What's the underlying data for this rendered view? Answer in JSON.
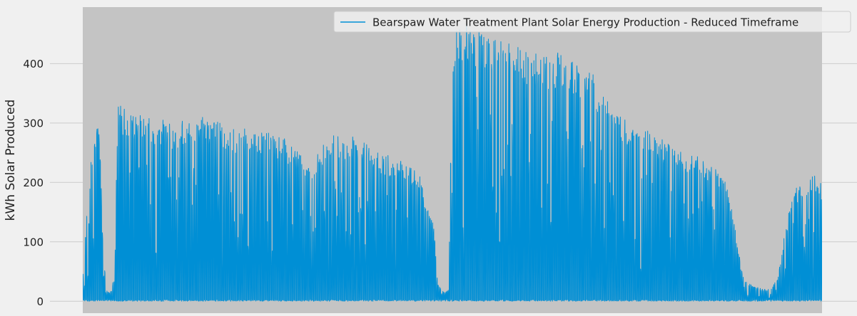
{
  "chart_data": {
    "type": "line",
    "title": "",
    "xlabel": "",
    "ylabel": "kWh Solar Produced",
    "ylim": [
      -20,
      495
    ],
    "xlim": [
      0,
      1
    ],
    "y_ticks": [
      0,
      100,
      200,
      300,
      400
    ],
    "x_ticks": [],
    "grid": "horizontal",
    "legend_placement": "top-right",
    "series": [
      {
        "name": "Bearspaw Water Treatment Plant Solar Energy Production - Reduced Timeframe",
        "color": "#008fd5",
        "envelope": {
          "note_x_is_relative_position": true,
          "x": [
            0.0,
            0.003,
            0.007,
            0.012,
            0.018,
            0.022,
            0.028,
            0.032,
            0.036,
            0.04,
            0.044,
            0.047,
            0.05,
            0.055,
            0.065,
            0.075,
            0.085,
            0.095,
            0.11,
            0.125,
            0.14,
            0.16,
            0.18,
            0.2,
            0.22,
            0.24,
            0.26,
            0.28,
            0.3,
            0.31,
            0.32,
            0.34,
            0.36,
            0.38,
            0.4,
            0.42,
            0.44,
            0.455,
            0.465,
            0.475,
            0.48,
            0.485,
            0.49,
            0.495,
            0.5,
            0.505,
            0.515,
            0.525,
            0.535,
            0.55,
            0.57,
            0.59,
            0.61,
            0.63,
            0.65,
            0.67,
            0.69,
            0.71,
            0.725,
            0.74,
            0.76,
            0.78,
            0.8,
            0.82,
            0.84,
            0.86,
            0.87,
            0.88,
            0.89,
            0.895,
            0.9,
            0.91,
            0.92,
            0.93,
            0.94,
            0.945,
            0.95,
            0.955,
            0.96,
            0.965,
            0.97,
            0.975,
            0.98,
            0.985,
            0.99,
            0.995,
            1.0
          ],
          "y": [
            40,
            110,
            180,
            250,
            305,
            310,
            80,
            20,
            15,
            20,
            90,
            340,
            330,
            325,
            318,
            318,
            310,
            305,
            305,
            300,
            310,
            318,
            305,
            295,
            290,
            290,
            280,
            270,
            250,
            215,
            260,
            280,
            280,
            270,
            255,
            240,
            232,
            220,
            160,
            130,
            30,
            20,
            15,
            20,
            450,
            465,
            470,
            465,
            460,
            450,
            440,
            430,
            420,
            415,
            420,
            405,
            385,
            345,
            315,
            300,
            290,
            275,
            260,
            250,
            240,
            220,
            200,
            150,
            60,
            35,
            30,
            25,
            20,
            20,
            40,
            80,
            120,
            150,
            180,
            190,
            200,
            205,
            210,
            210,
            215,
            205,
            200
          ]
        }
      }
    ]
  },
  "style": {
    "figure_bg": "#f0f0f0",
    "axes_bg": "#c4c4c4",
    "grid_color": "#cbcbcb",
    "text_color": "#222222",
    "legend_bg": "#f0f0f0",
    "legend_border": "#cccccc"
  }
}
